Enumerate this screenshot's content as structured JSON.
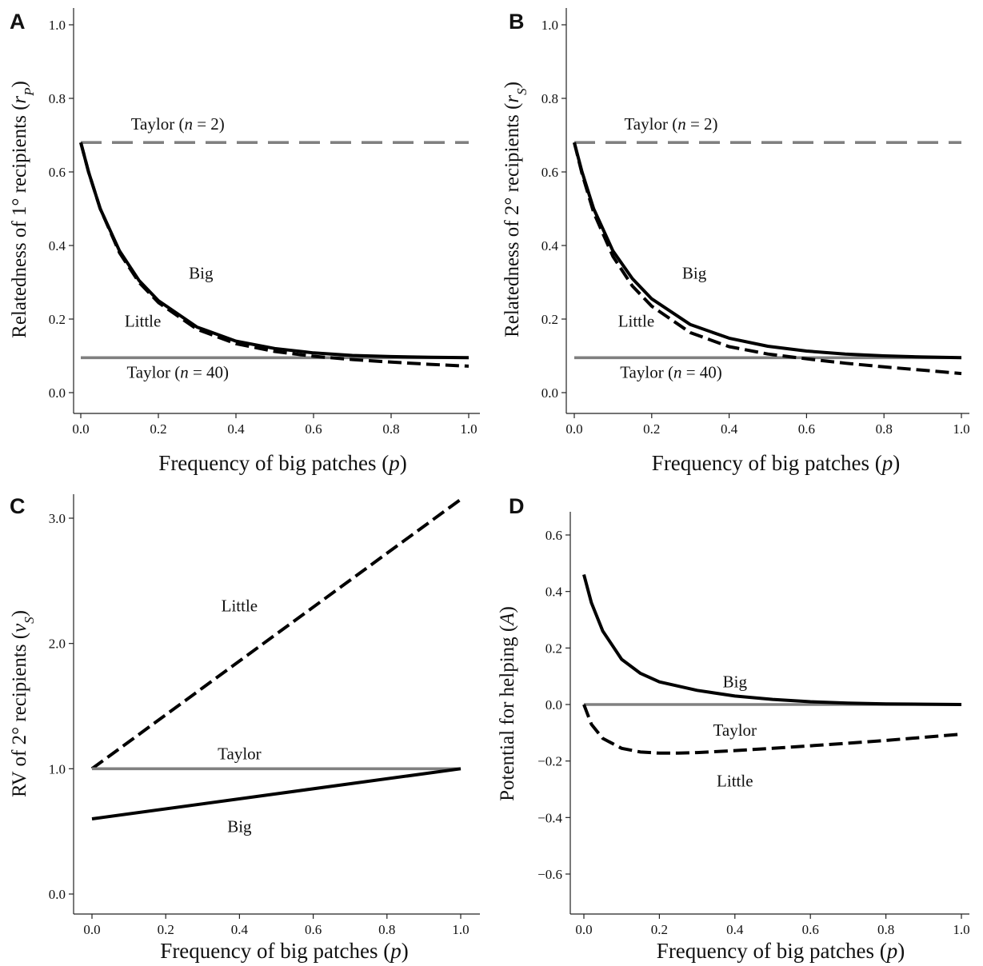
{
  "colors": {
    "black": "#000000",
    "gray": "#808080"
  },
  "chart_data": [
    {
      "panel": "A",
      "type": "line",
      "xlabel": "Frequency of big patches (p)",
      "xlabel_parts": [
        "Frequency of big patches (",
        "p",
        ")"
      ],
      "ylabel": "Relatedness of 1° recipients (rP)",
      "ylabel_parts": [
        "Relatedness of 1° recipients (",
        "r",
        "P",
        ")"
      ],
      "xlim": [
        0,
        1
      ],
      "ylim": [
        0,
        1
      ],
      "xticks": [
        "0.0",
        "0.2",
        "0.4",
        "0.6",
        "0.8",
        "1.0"
      ],
      "yticks": [
        "0.0",
        "0.2",
        "0.4",
        "0.6",
        "0.8",
        "1.0"
      ],
      "grid": false,
      "series": [
        {
          "name": "Taylor (n = 2)",
          "color": "gray",
          "style": "long-dash",
          "x": [
            0,
            1
          ],
          "y": [
            0.68,
            0.68
          ]
        },
        {
          "name": "Taylor (n = 40)",
          "color": "gray",
          "style": "solid",
          "x": [
            0,
            1
          ],
          "y": [
            0.095,
            0.095
          ]
        },
        {
          "name": "Big",
          "color": "black",
          "style": "solid",
          "x": [
            0,
            0.02,
            0.05,
            0.1,
            0.15,
            0.2,
            0.3,
            0.4,
            0.5,
            0.6,
            0.7,
            0.8,
            0.9,
            1.0
          ],
          "y": [
            0.68,
            0.6,
            0.5,
            0.385,
            0.305,
            0.25,
            0.178,
            0.14,
            0.12,
            0.108,
            0.101,
            0.098,
            0.096,
            0.095
          ]
        },
        {
          "name": "Little",
          "color": "black",
          "style": "dash",
          "x": [
            0,
            0.02,
            0.05,
            0.1,
            0.15,
            0.2,
            0.3,
            0.4,
            0.5,
            0.6,
            0.7,
            0.8,
            0.9,
            1.0
          ],
          "y": [
            0.68,
            0.6,
            0.5,
            0.38,
            0.3,
            0.245,
            0.172,
            0.133,
            0.112,
            0.099,
            0.09,
            0.083,
            0.077,
            0.072
          ]
        }
      ],
      "annotations": [
        {
          "text": [
            "Taylor (",
            "n",
            " = 2)"
          ],
          "x": 0.25,
          "y": 0.73
        },
        {
          "text": [
            "Big"
          ],
          "x": 0.31,
          "y": 0.325
        },
        {
          "text": [
            "Little"
          ],
          "x": 0.16,
          "y": 0.195
        },
        {
          "text": [
            "Taylor (",
            "n",
            " = 40)"
          ],
          "x": 0.25,
          "y": 0.055
        }
      ]
    },
    {
      "panel": "B",
      "type": "line",
      "xlabel": "Frequency of big patches (p)",
      "xlabel_parts": [
        "Frequency of big patches (",
        "p",
        ")"
      ],
      "ylabel": "Relatedness of 2° recipients (rS)",
      "ylabel_parts": [
        "Relatedness of 2° recipients (",
        "r",
        "S",
        ")"
      ],
      "xlim": [
        0,
        1
      ],
      "ylim": [
        0,
        1
      ],
      "xticks": [
        "0.0",
        "0.2",
        "0.4",
        "0.6",
        "0.8",
        "1.0"
      ],
      "yticks": [
        "0.0",
        "0.2",
        "0.4",
        "0.6",
        "0.8",
        "1.0"
      ],
      "grid": false,
      "series": [
        {
          "name": "Taylor (n = 2)",
          "color": "gray",
          "style": "long-dash",
          "x": [
            0,
            1
          ],
          "y": [
            0.68,
            0.68
          ]
        },
        {
          "name": "Taylor (n = 40)",
          "color": "gray",
          "style": "solid",
          "x": [
            0,
            1
          ],
          "y": [
            0.095,
            0.095
          ]
        },
        {
          "name": "Big",
          "color": "black",
          "style": "solid",
          "x": [
            0,
            0.02,
            0.05,
            0.1,
            0.15,
            0.2,
            0.3,
            0.4,
            0.5,
            0.6,
            0.7,
            0.8,
            0.9,
            1.0
          ],
          "y": [
            0.68,
            0.6,
            0.5,
            0.385,
            0.31,
            0.255,
            0.185,
            0.148,
            0.126,
            0.113,
            0.105,
            0.1,
            0.097,
            0.095
          ]
        },
        {
          "name": "Little",
          "color": "black",
          "style": "dash",
          "x": [
            0,
            0.02,
            0.05,
            0.1,
            0.15,
            0.2,
            0.3,
            0.4,
            0.5,
            0.6,
            0.7,
            0.8,
            0.9,
            1.0
          ],
          "y": [
            0.68,
            0.595,
            0.49,
            0.37,
            0.29,
            0.235,
            0.163,
            0.125,
            0.105,
            0.092,
            0.08,
            0.07,
            0.061,
            0.052
          ]
        }
      ],
      "annotations": [
        {
          "text": [
            "Taylor (",
            "n",
            " = 2)"
          ],
          "x": 0.25,
          "y": 0.73
        },
        {
          "text": [
            "Big"
          ],
          "x": 0.31,
          "y": 0.325
        },
        {
          "text": [
            "Little"
          ],
          "x": 0.16,
          "y": 0.195
        },
        {
          "text": [
            "Taylor (",
            "n",
            " = 40)"
          ],
          "x": 0.25,
          "y": 0.055
        }
      ]
    },
    {
      "panel": "C",
      "type": "line",
      "xlabel": "Frequency of big patches (p)",
      "xlabel_parts": [
        "Frequency of big patches (",
        "p",
        ")"
      ],
      "ylabel": "RV of 2° recipients (vS)",
      "ylabel_parts": [
        "RV of 2° recipients (",
        "v",
        "S",
        ")"
      ],
      "xlim": [
        0,
        1
      ],
      "ylim": [
        0,
        3.2
      ],
      "xticks": [
        "0.0",
        "0.2",
        "0.4",
        "0.6",
        "0.8",
        "1.0"
      ],
      "yticks": [
        "0.0",
        "1.0",
        "2.0",
        "3.0"
      ],
      "grid": false,
      "series": [
        {
          "name": "Little",
          "color": "black",
          "style": "dash",
          "x": [
            0,
            1
          ],
          "y": [
            1.0,
            3.15
          ]
        },
        {
          "name": "Taylor",
          "color": "gray",
          "style": "solid",
          "x": [
            0,
            1
          ],
          "y": [
            1.0,
            1.0
          ]
        },
        {
          "name": "Big",
          "color": "black",
          "style": "solid",
          "x": [
            0,
            1
          ],
          "y": [
            0.6,
            1.0
          ]
        }
      ],
      "annotations": [
        {
          "text": [
            "Little"
          ],
          "x": 0.4,
          "y": 2.3
        },
        {
          "text": [
            "Taylor"
          ],
          "x": 0.4,
          "y": 1.12
        },
        {
          "text": [
            "Big"
          ],
          "x": 0.4,
          "y": 0.54
        }
      ]
    },
    {
      "panel": "D",
      "type": "line",
      "xlabel": "Frequency of big patches (p)",
      "xlabel_parts": [
        "Frequency of big patches (",
        "p",
        ")"
      ],
      "ylabel": "Potential for helping (A)",
      "ylabel_parts": [
        "Potential for helping (",
        "A",
        "",
        ")"
      ],
      "xlim": [
        0,
        1
      ],
      "ylim": [
        -0.7,
        0.7
      ],
      "xticks": [
        "0.0",
        "0.2",
        "0.4",
        "0.6",
        "0.8",
        "1.0"
      ],
      "yticks": [
        "−0.6",
        "−0.4",
        "−0.2",
        "0.0",
        "0.2",
        "0.4",
        "0.6"
      ],
      "grid": false,
      "series": [
        {
          "name": "Taylor",
          "color": "gray",
          "style": "solid",
          "x": [
            0,
            1
          ],
          "y": [
            0.0,
            0.0
          ]
        },
        {
          "name": "Big",
          "color": "black",
          "style": "solid",
          "x": [
            0,
            0.02,
            0.05,
            0.1,
            0.15,
            0.2,
            0.3,
            0.4,
            0.5,
            0.6,
            0.7,
            0.8,
            0.9,
            1.0
          ],
          "y": [
            0.46,
            0.36,
            0.26,
            0.16,
            0.11,
            0.08,
            0.05,
            0.03,
            0.018,
            0.01,
            0.005,
            0.002,
            0.001,
            0.0
          ]
        },
        {
          "name": "Little",
          "color": "black",
          "style": "dash",
          "x": [
            0,
            0.02,
            0.05,
            0.1,
            0.15,
            0.2,
            0.25,
            0.3,
            0.4,
            0.5,
            0.6,
            0.7,
            0.8,
            0.9,
            1.0
          ],
          "y": [
            0.0,
            -0.07,
            -0.12,
            -0.155,
            -0.168,
            -0.172,
            -0.172,
            -0.17,
            -0.163,
            -0.155,
            -0.146,
            -0.137,
            -0.127,
            -0.116,
            -0.105
          ]
        }
      ],
      "annotations": [
        {
          "text": [
            "Big"
          ],
          "x": 0.4,
          "y": 0.08
        },
        {
          "text": [
            "Taylor"
          ],
          "x": 0.4,
          "y": -0.09
        },
        {
          "text": [
            "Little"
          ],
          "x": 0.4,
          "y": -0.27
        }
      ]
    }
  ]
}
